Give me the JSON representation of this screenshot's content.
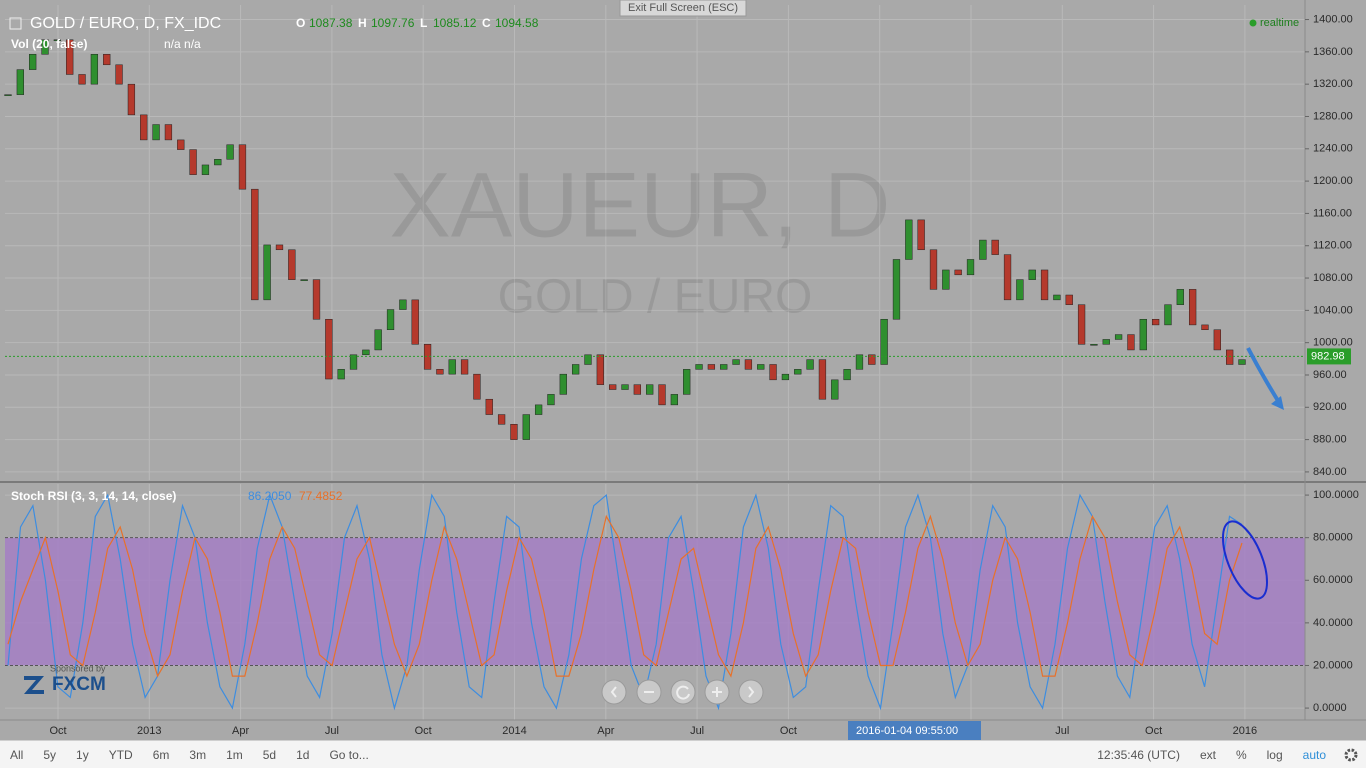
{
  "ui": {
    "exit_fullscreen": "Exit Full Screen (ESC)",
    "symbol": "GOLD / EURO, D, FX_IDC",
    "ohlc": [
      {
        "key": "O",
        "value": "1087.38"
      },
      {
        "key": "H",
        "value": "1097.76"
      },
      {
        "key": "L",
        "value": "1085.12"
      },
      {
        "key": "C",
        "value": "1094.58"
      }
    ],
    "realtime": "realtime",
    "vol_label": "Vol (20, false)",
    "vol_values": "n/a n/a",
    "watermark_symbol": "XAUEUR, D",
    "watermark_name": "GOLD / EURO",
    "sponsored": "Sponsored by",
    "sponsor": "FXCM",
    "crosshair_time": "2016-01-04 09:55:00",
    "toolbar_left": [
      "All",
      "5y",
      "1y",
      "YTD",
      "6m",
      "3m",
      "1m",
      "5d",
      "1d",
      "Go to..."
    ],
    "clock": "12:35:46 (UTC)",
    "toolbar_right": [
      "ext",
      "%",
      "log",
      "auto"
    ]
  },
  "chart_data": [
    {
      "type": "candlestick",
      "values": [
        1307,
        1338,
        1357,
        1375,
        1375,
        1332,
        1320,
        1357,
        1344,
        1320,
        1282,
        1251,
        1270,
        1251,
        1239,
        1208,
        1220,
        1227,
        1245,
        1190,
        1053,
        1121,
        1115,
        1078,
        1078,
        1029,
        955,
        967,
        985,
        991,
        1016,
        1041,
        1053,
        998,
        967,
        961,
        979,
        961,
        930,
        911,
        899,
        880,
        911,
        923,
        936,
        961,
        973,
        985,
        948,
        942,
        948,
        936,
        948,
        923,
        936,
        967,
        973,
        967,
        973,
        979,
        967,
        973,
        954,
        961,
        967,
        979,
        930,
        954,
        967,
        985,
        973,
        1029,
        1103,
        1152,
        1115,
        1066,
        1090,
        1084,
        1103,
        1127,
        1109,
        1053,
        1078,
        1090,
        1053,
        1059,
        1047,
        998,
        998,
        1004,
        1010,
        991,
        1029,
        1022,
        1047,
        1066,
        1022,
        1016,
        991,
        973,
        979
      ],
      "up_color": "#2f8f2f",
      "down_color": "#b5392c",
      "ylim": [
        830,
        1418
      ],
      "yticks": [
        {
          "value": 840,
          "label": "840.00"
        },
        {
          "value": 880,
          "label": "880.00"
        },
        {
          "value": 920,
          "label": "920.00"
        },
        {
          "value": 960,
          "label": "960.00"
        },
        {
          "value": 1000,
          "label": "1000.00"
        },
        {
          "value": 1040,
          "label": "1040.00"
        },
        {
          "value": 1080,
          "label": "1080.00"
        },
        {
          "value": 1120,
          "label": "1120.00"
        },
        {
          "value": 1160,
          "label": "1160.00"
        },
        {
          "value": 1200,
          "label": "1200.00"
        },
        {
          "value": 1240,
          "label": "1240.00"
        },
        {
          "value": 1280,
          "label": "1280.00"
        },
        {
          "value": 1320,
          "label": "1320.00"
        },
        {
          "value": 1360,
          "label": "1360.00"
        },
        {
          "value": 1400,
          "label": "1400.00"
        }
      ],
      "grid": true,
      "last_price": {
        "value": 982.98,
        "label": "982.98"
      },
      "last_price_color": "#2a9d2a"
    },
    {
      "type": "line",
      "title": "Stoch RSI (3, 3, 14, 14, close)",
      "series": [
        {
          "color": "#3d8de0",
          "last_label": "86.2050",
          "values": [
            20,
            85,
            95,
            60,
            10,
            5,
            40,
            90,
            100,
            70,
            30,
            5,
            15,
            60,
            95,
            80,
            40,
            10,
            0,
            30,
            75,
            100,
            85,
            50,
            15,
            5,
            35,
            80,
            95,
            70,
            25,
            0,
            20,
            65,
            100,
            90,
            45,
            10,
            5,
            50,
            90,
            85,
            40,
            10,
            0,
            25,
            70,
            95,
            100,
            60,
            20,
            5,
            30,
            80,
            90,
            55,
            15,
            0,
            35,
            85,
            100,
            75,
            30,
            5,
            10,
            55,
            95,
            90,
            50,
            15,
            0,
            40,
            85,
            100,
            80,
            35,
            5,
            20,
            65,
            95,
            85,
            40,
            10,
            0,
            30,
            75,
            100,
            90,
            50,
            15,
            5,
            45,
            85,
            95,
            70,
            30,
            10,
            50,
            90,
            86.205
          ]
        },
        {
          "color": "#e8712a",
          "last_label": "77.4852",
          "values": [
            30,
            50,
            65,
            80,
            55,
            25,
            20,
            45,
            75,
            85,
            65,
            35,
            15,
            25,
            55,
            80,
            70,
            45,
            15,
            15,
            40,
            70,
            85,
            75,
            50,
            25,
            20,
            45,
            70,
            80,
            55,
            30,
            15,
            30,
            60,
            85,
            70,
            45,
            20,
            25,
            55,
            80,
            70,
            45,
            15,
            15,
            35,
            65,
            90,
            80,
            55,
            25,
            20,
            45,
            70,
            75,
            50,
            25,
            15,
            40,
            75,
            85,
            65,
            35,
            15,
            25,
            55,
            80,
            75,
            45,
            20,
            20,
            45,
            75,
            90,
            70,
            40,
            20,
            30,
            60,
            80,
            70,
            45,
            15,
            15,
            40,
            70,
            90,
            80,
            50,
            25,
            20,
            45,
            75,
            85,
            65,
            35,
            30,
            60,
            77.4852
          ]
        }
      ],
      "ylim": [
        -5.6,
        105.2
      ],
      "yticks": [
        {
          "value": 0,
          "label": "0.0000"
        },
        {
          "value": 20,
          "label": "20.0000"
        },
        {
          "value": 40,
          "label": "40.0000"
        },
        {
          "value": 60,
          "label": "60.0000"
        },
        {
          "value": 80,
          "label": "80.0000"
        },
        {
          "value": 100,
          "label": "100.0000"
        }
      ],
      "band": [
        20,
        80
      ],
      "band_color": "#a57fc4",
      "grid": true,
      "xticks": [
        "Oct",
        "2013",
        "Apr",
        "Jul",
        "Oct",
        "2014",
        "Apr",
        "Jul",
        "Oct",
        null,
        null,
        "Jul",
        "Oct",
        "2016"
      ]
    }
  ]
}
